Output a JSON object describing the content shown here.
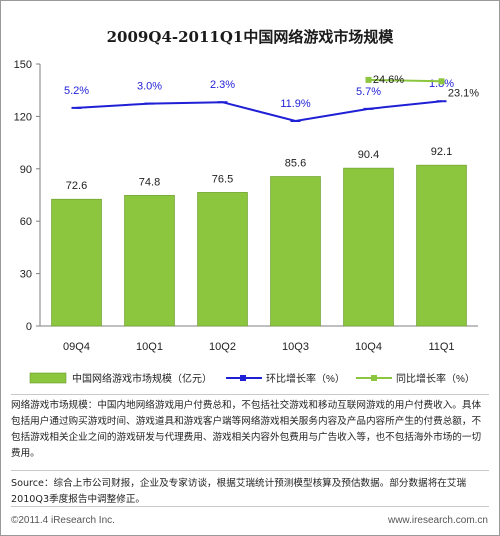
{
  "title": "2009Q4-2011Q1中国网络游戏市场规模",
  "chart_data": {
    "type": "bar",
    "categories": [
      "09Q4",
      "10Q1",
      "10Q2",
      "10Q3",
      "10Q4",
      "11Q1"
    ],
    "ylim": [
      0,
      150
    ],
    "yticks": [
      0,
      30,
      60,
      90,
      120,
      150
    ],
    "bar_series": {
      "name": "中国网络游戏市场规模（亿元）",
      "values": [
        72.6,
        74.8,
        76.5,
        85.6,
        90.4,
        92.1
      ],
      "labels": [
        "72.6",
        "74.8",
        "76.5",
        "85.6",
        "90.4",
        "92.1"
      ],
      "color": "#8cc63e"
    },
    "qoq_series": {
      "name": "环比增长率（%）",
      "values": [
        5.2,
        3.0,
        2.3,
        11.9,
        5.7,
        1.8
      ],
      "labels": [
        "5.2%",
        "3.0%",
        "2.3%",
        "11.9%",
        "5.7%",
        "1.8%"
      ],
      "color": "#1f1fd6"
    },
    "yoy_series": {
      "name": "同比增长率（%）",
      "categories": [
        "10Q4",
        "11Q1"
      ],
      "values": [
        24.6,
        23.1
      ],
      "labels": [
        "24.6%",
        "23.1%"
      ],
      "color": "#8cc63e"
    },
    "legend_position": "bottom"
  },
  "note": "网络游戏市场规模：中国内地网络游戏用户付费总和，不包括社交游戏和移动互联网游戏的用户付费收入。具体包括用户通过购买游戏时间、游戏道具和游戏客户端等网络游戏相关服务内容及产品内容所产生的付费总额，不包括游戏相关企业之间的游戏研发与代理费用、游戏相关内容外包费用与广告收入等，也不包括海外市场的一切费用。",
  "source": "Source：综合上市公司财报，企业及专家访谈，根据艾瑞统计预测模型核算及预估数据。部分数据将在艾瑞2010Q3季度报告中调整修正。",
  "footer": {
    "copyright": "©2011.4 iResearch Inc.",
    "website": "www.iresearch.com.cn"
  }
}
